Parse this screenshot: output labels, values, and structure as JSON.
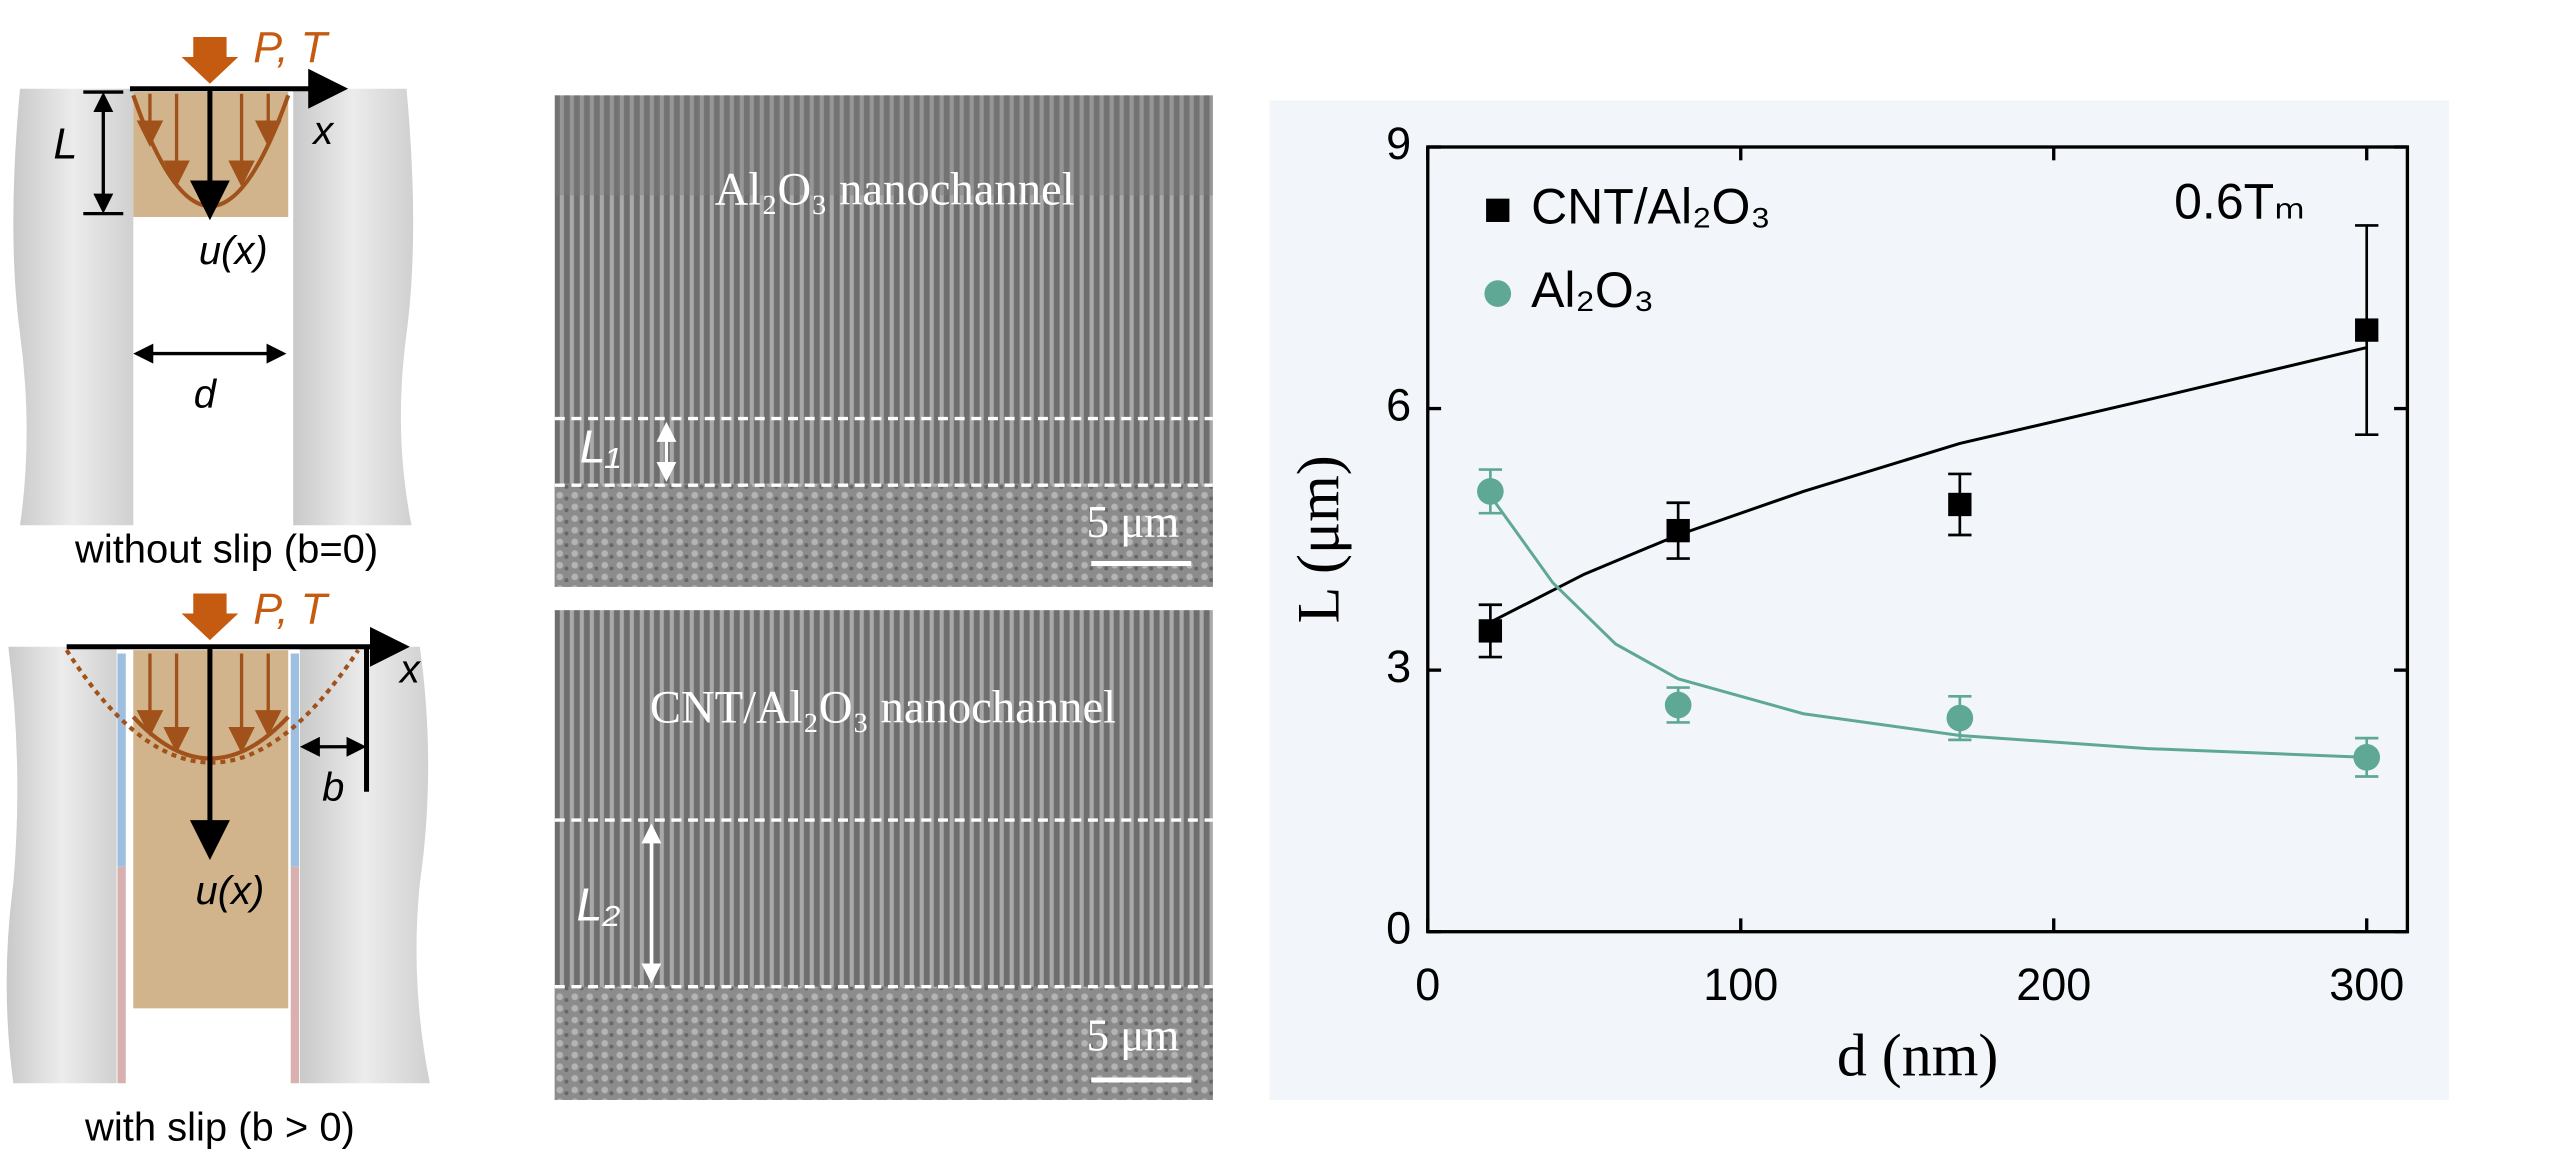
{
  "schematic": {
    "top": {
      "load": "P, T",
      "x_axis": "x",
      "length": "L",
      "velocity": "u(x)",
      "width": "d",
      "caption": "without slip (b=0)"
    },
    "bottom": {
      "load": "P, T",
      "x_axis": "x",
      "slip": "b",
      "velocity": "u(x)",
      "caption": "with slip (b > 0)"
    }
  },
  "sem": {
    "top": {
      "label": "Al₂O₃ nanochannel",
      "length": "L₁",
      "scale": "5 μm"
    },
    "bottom": {
      "label": "CNT/Al₂O₃ nanochannel",
      "length": "L₂",
      "scale": "5 μm"
    }
  },
  "chart_data": {
    "type": "scatter",
    "x_label": "d (nm)",
    "y_label": "L (μm)",
    "annotation": "0.6Tₘ",
    "x": [
      20,
      80,
      170,
      300
    ],
    "series": [
      {
        "name": "CNT/Al₂O₃",
        "color": "#000000",
        "marker": "square",
        "values": [
          3.45,
          4.6,
          4.9,
          6.9
        ],
        "errors": [
          0.3,
          0.32,
          0.35,
          1.2
        ]
      },
      {
        "name": "Al₂O₃",
        "color": "#5fa896",
        "marker": "circle",
        "values": [
          5.05,
          2.6,
          2.45,
          2.0
        ],
        "errors": [
          0.25,
          0.2,
          0.25,
          0.22
        ]
      }
    ],
    "fit_lines": [
      {
        "color": "#000000",
        "x": [
          20,
          50,
          80,
          120,
          170,
          230,
          300
        ],
        "values": [
          3.55,
          4.1,
          4.55,
          5.05,
          5.6,
          6.1,
          6.7
        ]
      },
      {
        "color": "#5fa896",
        "x": [
          20,
          40,
          60,
          80,
          120,
          170,
          230,
          300
        ],
        "values": [
          5.0,
          4.0,
          3.3,
          2.9,
          2.5,
          2.25,
          2.1,
          2.0
        ]
      }
    ],
    "xlim": [
      0,
      313
    ],
    "ylim": [
      0,
      9
    ],
    "xticks": [
      0,
      100,
      200,
      300
    ],
    "yticks": [
      0,
      3,
      6,
      9
    ],
    "legend": "upper left"
  }
}
